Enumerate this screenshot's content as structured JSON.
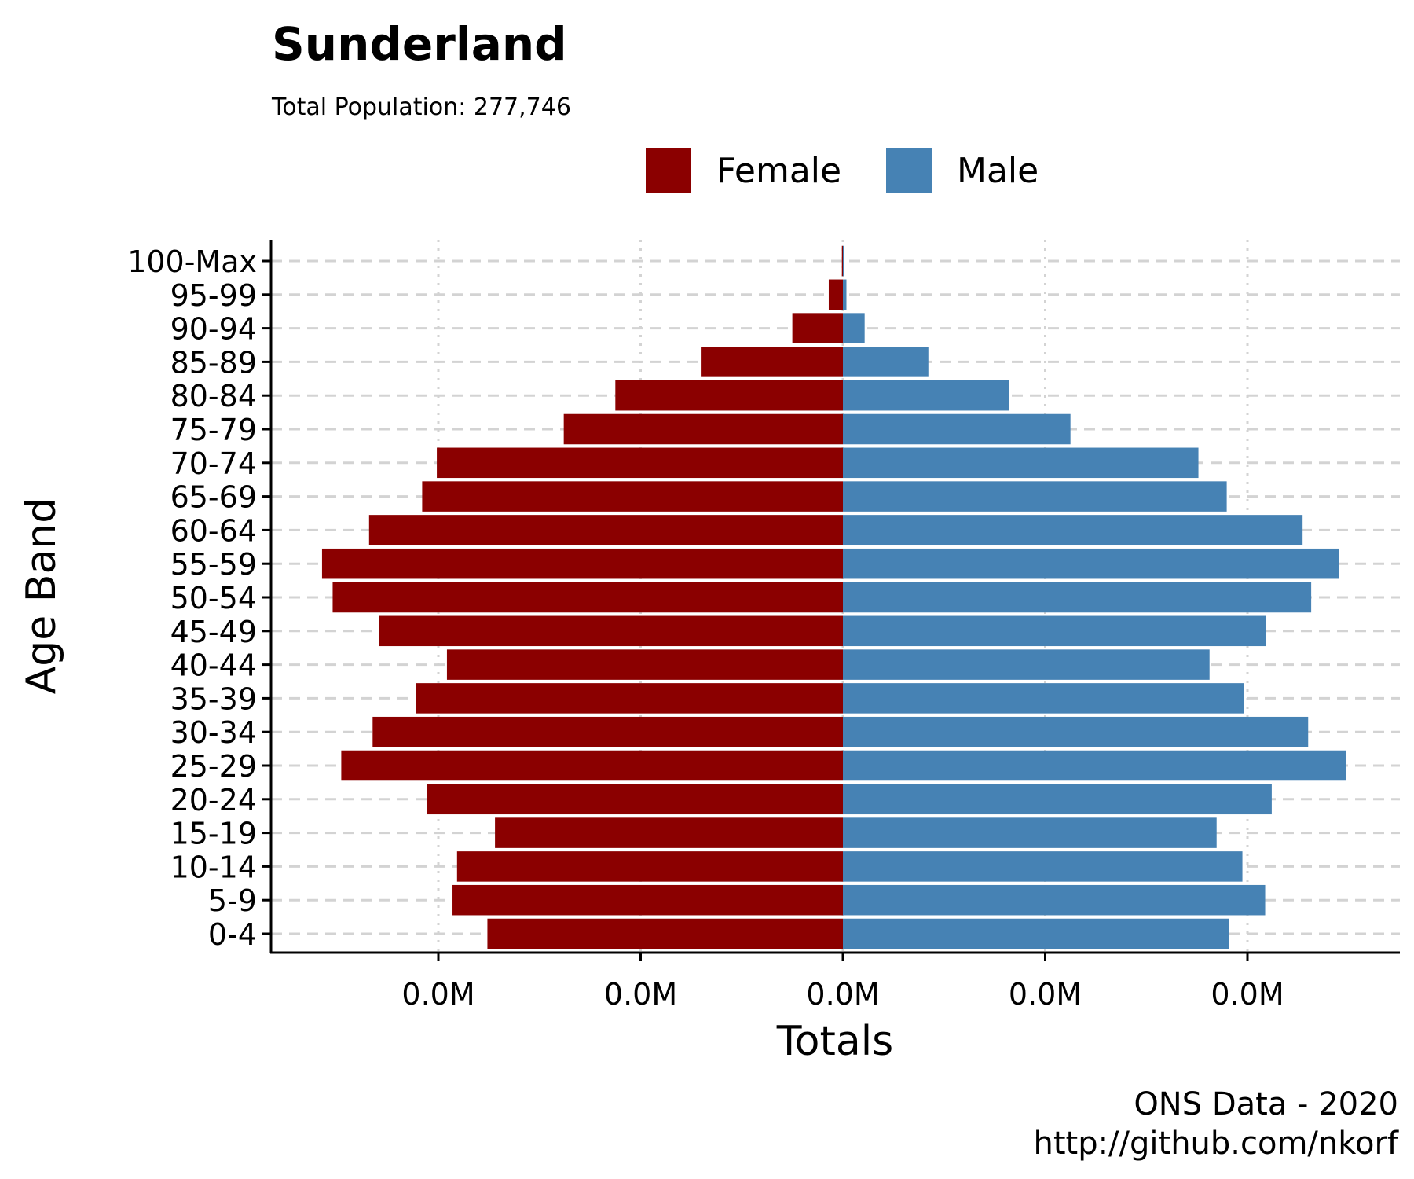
{
  "chart_data": {
    "type": "bar",
    "orientation": "horizontal",
    "title": "Sunderland",
    "subtitle": "Total Population:  277,746",
    "xlabel": "Totals",
    "ylabel": "Age Band",
    "caption_lines": [
      "ONS Data - 2020",
      "http://github.com/nkorf"
    ],
    "categories": [
      "0-4",
      "5-9",
      "10-14",
      "15-19",
      "20-24",
      "25-29",
      "30-34",
      "35-39",
      "40-44",
      "45-49",
      "50-54",
      "55-59",
      "60-64",
      "65-69",
      "70-74",
      "75-79",
      "80-84",
      "85-89",
      "90-94",
      "95-99",
      "100-Max"
    ],
    "series": [
      {
        "name": "Female",
        "color": "#8B0000",
        "values": [
          -7030,
          -7720,
          -7630,
          -6880,
          -8230,
          -9920,
          -9300,
          -8440,
          -7830,
          -9170,
          -10090,
          -10300,
          -9370,
          -8320,
          -8030,
          -5520,
          -4500,
          -2810,
          -1000,
          -280,
          -20
        ]
      },
      {
        "name": "Male",
        "color": "#4682B4",
        "values": [
          7630,
          8350,
          7900,
          7390,
          8480,
          9950,
          9200,
          7930,
          7250,
          8370,
          9260,
          9810,
          9090,
          7590,
          7030,
          4500,
          3290,
          1690,
          430,
          70,
          10
        ]
      }
    ],
    "xlim": [
      -11350,
      11000
    ],
    "x_ticks": [
      -8000,
      -4000,
      0,
      4000,
      8000
    ],
    "x_tick_labels": [
      "0.0M",
      "0.0M",
      "0.0M",
      "0.0M",
      "0.0M"
    ],
    "legend_position": "top",
    "grid": {
      "horizontal": "dashed",
      "vertical": "dotted"
    }
  }
}
